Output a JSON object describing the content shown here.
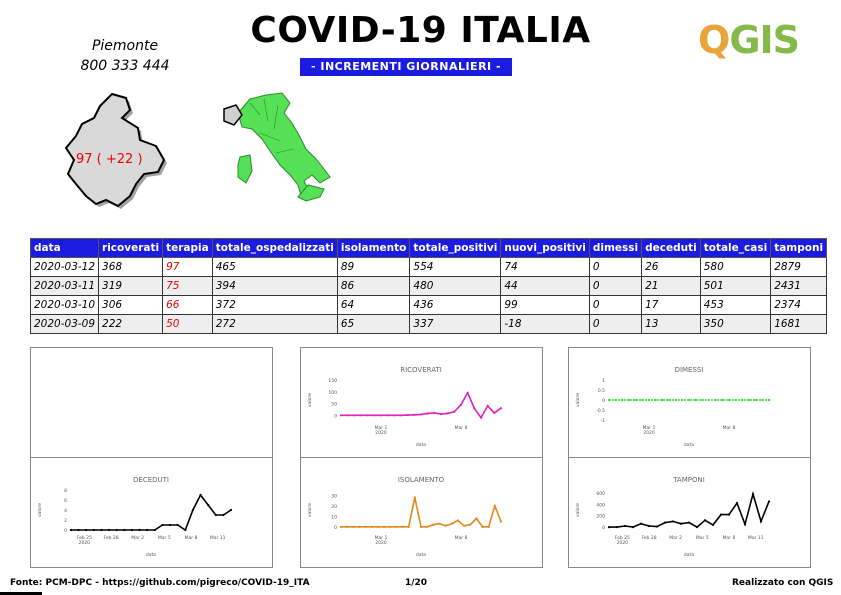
{
  "header": {
    "title": "COVID-19 ITALIA",
    "subtitle": "- INCREMENTI GIORNALIERI -",
    "logo_text": "QGIS"
  },
  "region": {
    "name": "Piemonte",
    "phone": "800 333 444",
    "value_label": "97 ( +22 )"
  },
  "table": {
    "columns": [
      "data",
      "ricoverati",
      "terapia",
      "totale_ospedalizzati",
      "isolamento",
      "totale_positivi",
      "nuovi_positivi",
      "dimessi",
      "deceduti",
      "totale_casi",
      "tamponi"
    ],
    "rows": [
      [
        "2020-03-12",
        "368",
        "97",
        "465",
        "89",
        "554",
        "74",
        "0",
        "26",
        "580",
        "2879"
      ],
      [
        "2020-03-11",
        "319",
        "75",
        "394",
        "86",
        "480",
        "44",
        "0",
        "21",
        "501",
        "2431"
      ],
      [
        "2020-03-10",
        "306",
        "66",
        "372",
        "64",
        "436",
        "99",
        "0",
        "17",
        "453",
        "2374"
      ],
      [
        "2020-03-09",
        "222",
        "50",
        "272",
        "65",
        "337",
        "-18",
        "0",
        "13",
        "350",
        "1681"
      ]
    ]
  },
  "chart_data": [
    {
      "type": "line",
      "title": "RICOVERATI",
      "xlabel": "data",
      "ylabel": "valore",
      "color": "#e020c0",
      "x_ticks": [
        "Mar 1\n2020",
        "Mar 8"
      ],
      "y_ticks": [
        "0",
        "50",
        "100",
        "150"
      ],
      "ylim": [
        -20,
        150
      ],
      "values": [
        0,
        0,
        0,
        0,
        0,
        0,
        0,
        0,
        0,
        0,
        1,
        2,
        4,
        8,
        10,
        5,
        8,
        15,
        45,
        95,
        30,
        -10,
        40,
        10,
        30
      ]
    },
    {
      "type": "line",
      "title": "DIMESSI",
      "xlabel": "data",
      "ylabel": "valore",
      "color": "#30e030",
      "x_ticks": [
        "Mar 1\n2020",
        "Mar 8"
      ],
      "y_ticks": [
        "-1",
        "-0.5",
        "0",
        "0.5",
        "1"
      ],
      "ylim": [
        -1,
        1
      ],
      "values": [
        0,
        0,
        0,
        0,
        0,
        0,
        0,
        0,
        0,
        0,
        0,
        0,
        0,
        0,
        0,
        0,
        0,
        0,
        0,
        0,
        0,
        0,
        0,
        0,
        0
      ]
    },
    {
      "type": "line",
      "title": "DECEDUTI",
      "xlabel": "data",
      "ylabel": "valore",
      "color": "#000000",
      "x_ticks": [
        "Feb 25\n2020",
        "Feb 28",
        "Mar 2",
        "Mar 5",
        "Mar 8",
        "Mar 11"
      ],
      "y_ticks": [
        "0",
        "2",
        "4",
        "6",
        "8"
      ],
      "ylim": [
        0,
        8
      ],
      "values": [
        0,
        0,
        0,
        0,
        0,
        0,
        0,
        0,
        0,
        0,
        0,
        0,
        1,
        1,
        1,
        0,
        4,
        7,
        5,
        3,
        3,
        4
      ]
    },
    {
      "type": "line",
      "title": "ISOLAMENTO",
      "xlabel": "data",
      "ylabel": "valore",
      "color": "#e08a20",
      "x_ticks": [
        "Mar 1\n2020",
        "Mar 8"
      ],
      "y_ticks": [
        "0",
        "10",
        "20",
        "30"
      ],
      "ylim": [
        -3,
        35
      ],
      "values": [
        0,
        0,
        0,
        0,
        0,
        0,
        0,
        0,
        0,
        0,
        0,
        0,
        28,
        0,
        0,
        2,
        3,
        1,
        3,
        6,
        1,
        2,
        8,
        0,
        0,
        20,
        5
      ]
    },
    {
      "type": "line",
      "title": "TAMPONI",
      "xlabel": "data",
      "ylabel": "valore",
      "color": "#000000",
      "x_ticks": [
        "Feb 25\n2020",
        "Feb 28",
        "Mar 2",
        "Mar 5",
        "Mar 8",
        "Mar 11"
      ],
      "y_ticks": [
        "0",
        "200",
        "400",
        "600"
      ],
      "ylim": [
        -50,
        650
      ],
      "values": [
        0,
        0,
        20,
        0,
        60,
        20,
        10,
        80,
        100,
        60,
        80,
        0,
        120,
        40,
        220,
        220,
        420,
        50,
        580,
        100,
        450
      ]
    }
  ],
  "footer": {
    "source": "Fonte: PCM-DPC - https://github.com/pigreco/COVID-19_ITA",
    "page": "1/20",
    "credit": "Realizzato con QGIS"
  }
}
